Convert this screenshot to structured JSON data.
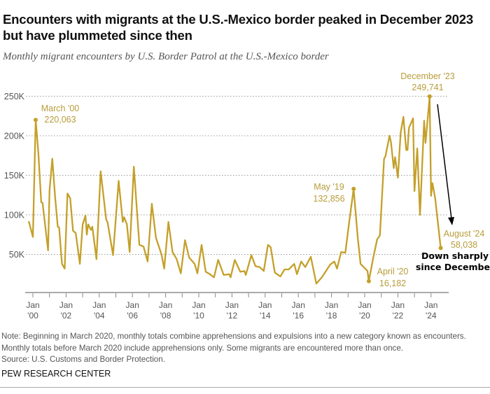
{
  "title": "Encounters with migrants at the U.S.-Mexico border peaked in December 2023 but have plummeted since then",
  "subtitle": "Monthly migrant encounters by U.S. Border Patrol at the U.S.-Mexico border",
  "note": "Note: Beginning in March 2020, monthly totals combine apprehensions and expulsions into a new category known as encounters. Monthly totals before March 2020 include apprehensions only. Some migrants are encountered more than once.",
  "source": "Source: U.S. Customs and Border Protection.",
  "brand": "PEW RESEARCH CENTER",
  "colors": {
    "line": "#c4a02a",
    "annotation": "#b89c3a",
    "callout": "#000000",
    "grid": "#999999"
  },
  "chart_data": {
    "type": "line",
    "title": "",
    "xlabel": "",
    "ylabel": "",
    "ylim": [
      0,
      250000
    ],
    "grid": true,
    "y_ticks": [
      {
        "value": 50000,
        "label": "50K"
      },
      {
        "value": 100000,
        "label": "100K"
      },
      {
        "value": 150000,
        "label": "150K"
      },
      {
        "value": 200000,
        "label": "200K"
      },
      {
        "value": 250000,
        "label": "250K"
      }
    ],
    "x_ticks": [
      {
        "year": 2000,
        "line1": "Jan",
        "line2": "'00"
      },
      {
        "year": 2002,
        "line1": "Jan",
        "line2": "'02"
      },
      {
        "year": 2004,
        "line1": "Jan",
        "line2": "'04"
      },
      {
        "year": 2006,
        "line1": "Jan",
        "line2": "'06"
      },
      {
        "year": 2008,
        "line1": "Jan",
        "line2": "'08"
      },
      {
        "year": 2010,
        "line1": "Jan",
        "line2": "'10"
      },
      {
        "year": 2012,
        "line1": "Jan",
        "line2": "'12"
      },
      {
        "year": 2014,
        "line1": "Jan",
        "line2": "'14"
      },
      {
        "year": 2016,
        "line1": "Jan",
        "line2": "'16"
      },
      {
        "year": 2018,
        "line1": "Jan",
        "line2": "'18"
      },
      {
        "year": 2020,
        "line1": "Jan",
        "line2": "'20"
      },
      {
        "year": 2022,
        "line1": "Jan",
        "line2": "'22"
      },
      {
        "year": 2024,
        "line1": "Jan",
        "line2": "'24"
      }
    ],
    "series": [
      {
        "points": [
          [
            "1999-10",
            92000
          ],
          [
            "2000-01",
            72000
          ],
          [
            "2000-03",
            220063
          ],
          [
            "2000-05",
            177000
          ],
          [
            "2000-07",
            116000
          ],
          [
            "2000-08",
            115000
          ],
          [
            "2000-12",
            55000
          ],
          [
            "2001-01",
            130000
          ],
          [
            "2001-03",
            171000
          ],
          [
            "2001-05",
            124000
          ],
          [
            "2001-07",
            85000
          ],
          [
            "2001-08",
            84000
          ],
          [
            "2001-10",
            38000
          ],
          [
            "2001-12",
            32000
          ],
          [
            "2002-02",
            127000
          ],
          [
            "2002-04",
            121000
          ],
          [
            "2002-06",
            80000
          ],
          [
            "2002-08",
            77000
          ],
          [
            "2002-11",
            38000
          ],
          [
            "2003-01",
            88000
          ],
          [
            "2003-03",
            99000
          ],
          [
            "2003-04",
            75000
          ],
          [
            "2003-05",
            88000
          ],
          [
            "2003-07",
            81000
          ],
          [
            "2003-08",
            85000
          ],
          [
            "2003-11",
            44000
          ],
          [
            "2004-02",
            155000
          ],
          [
            "2004-06",
            94000
          ],
          [
            "2004-07",
            91000
          ],
          [
            "2004-11",
            49000
          ],
          [
            "2005-03",
            143000
          ],
          [
            "2005-06",
            91000
          ],
          [
            "2005-07",
            97000
          ],
          [
            "2005-09",
            88000
          ],
          [
            "2005-11",
            53000
          ],
          [
            "2006-02",
            161000
          ],
          [
            "2006-06",
            62000
          ],
          [
            "2006-09",
            60000
          ],
          [
            "2006-12",
            41000
          ],
          [
            "2007-03",
            114000
          ],
          [
            "2007-06",
            71000
          ],
          [
            "2007-10",
            50000
          ],
          [
            "2007-12",
            32000
          ],
          [
            "2008-03",
            91000
          ],
          [
            "2008-06",
            53000
          ],
          [
            "2008-09",
            44000
          ],
          [
            "2008-12",
            26000
          ],
          [
            "2009-03",
            68000
          ],
          [
            "2009-06",
            46000
          ],
          [
            "2009-10",
            38000
          ],
          [
            "2009-12",
            26000
          ],
          [
            "2010-03",
            62000
          ],
          [
            "2010-06",
            28000
          ],
          [
            "2010-09",
            25000
          ],
          [
            "2010-12",
            21000
          ],
          [
            "2011-03",
            43000
          ],
          [
            "2011-07",
            24000
          ],
          [
            "2011-11",
            25000
          ],
          [
            "2011-12",
            21000
          ],
          [
            "2012-03",
            43000
          ],
          [
            "2012-07",
            28000
          ],
          [
            "2012-10",
            29000
          ],
          [
            "2012-11",
            24000
          ],
          [
            "2013-03",
            49000
          ],
          [
            "2013-06",
            35000
          ],
          [
            "2013-09",
            34000
          ],
          [
            "2013-12",
            29000
          ],
          [
            "2014-03",
            62000
          ],
          [
            "2014-05",
            59000
          ],
          [
            "2014-08",
            27000
          ],
          [
            "2014-12",
            22000
          ],
          [
            "2015-03",
            31000
          ],
          [
            "2015-06",
            31000
          ],
          [
            "2015-10",
            38000
          ],
          [
            "2015-12",
            25000
          ],
          [
            "2016-03",
            41000
          ],
          [
            "2016-06",
            34000
          ],
          [
            "2016-10",
            47000
          ],
          [
            "2017-02",
            13000
          ],
          [
            "2017-06",
            21000
          ],
          [
            "2017-09",
            29000
          ],
          [
            "2017-12",
            37000
          ],
          [
            "2018-03",
            41000
          ],
          [
            "2018-05",
            32000
          ],
          [
            "2018-08",
            53000
          ],
          [
            "2018-11",
            52000
          ],
          [
            "2019-02",
            94000
          ],
          [
            "2019-05",
            132856
          ],
          [
            "2019-08",
            71000
          ],
          [
            "2019-10",
            38000
          ],
          [
            "2020-03",
            29000
          ],
          [
            "2020-04",
            16182
          ],
          [
            "2020-07",
            44000
          ],
          [
            "2020-10",
            69000
          ],
          [
            "2020-12",
            74000
          ],
          [
            "2021-03",
            171000
          ],
          [
            "2021-04",
            174000
          ],
          [
            "2021-07",
            200000
          ],
          [
            "2021-08",
            192000
          ],
          [
            "2021-10",
            159000
          ],
          [
            "2021-11",
            173000
          ],
          [
            "2022-01",
            147000
          ],
          [
            "2022-03",
            204000
          ],
          [
            "2022-05",
            224000
          ],
          [
            "2022-07",
            182000
          ],
          [
            "2022-08",
            182000
          ],
          [
            "2022-09",
            210000
          ],
          [
            "2022-12",
            222000
          ],
          [
            "2023-01",
            130000
          ],
          [
            "2023-03",
            184000
          ],
          [
            "2023-05",
            100000
          ],
          [
            "2023-08",
            219000
          ],
          [
            "2023-09",
            191000
          ],
          [
            "2023-12",
            249741
          ],
          [
            "2024-01",
            124000
          ],
          [
            "2024-02",
            140000
          ],
          [
            "2024-04",
            121000
          ],
          [
            "2024-08",
            58038
          ]
        ]
      }
    ],
    "annotations": [
      {
        "date": "2000-03",
        "label": "March '00",
        "value_label": "220,063"
      },
      {
        "date": "2019-05",
        "label": "May '19",
        "value_label": "132,856"
      },
      {
        "date": "2020-04",
        "label": "April '20",
        "value_label": "16,182"
      },
      {
        "date": "2023-12",
        "label": "December '23",
        "value_label": "249,741"
      },
      {
        "date": "2024-08",
        "label": "August '24",
        "value_label": "58,038"
      }
    ],
    "callout": {
      "line1": "Down sharply",
      "line2": "since December"
    }
  }
}
